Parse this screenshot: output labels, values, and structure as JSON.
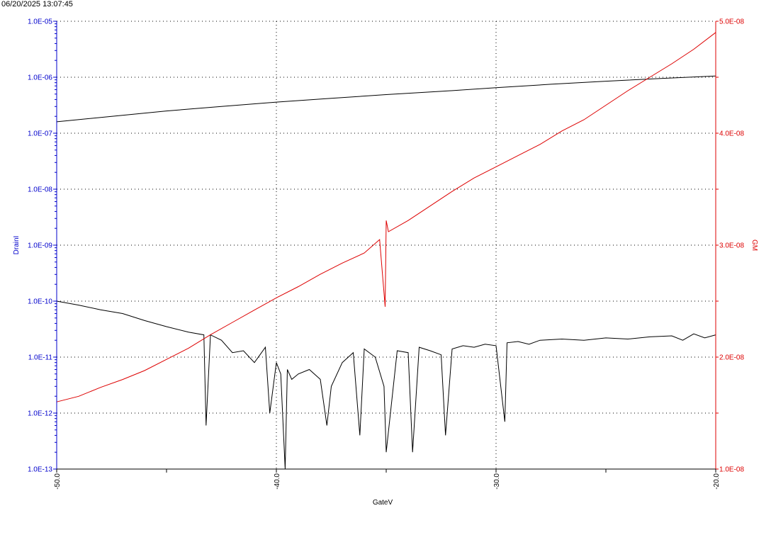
{
  "timestamp": "06/20/2025 13:07:45",
  "chart_data": {
    "type": "line",
    "xlabel": "GateV",
    "ylabel_left": "DrainI",
    "ylabel_right": "GM",
    "xlim": [
      -50.0,
      -20.0
    ],
    "ylim_left": [
      1e-13,
      1e-05
    ],
    "ylim_right": [
      1e-08,
      5e-08
    ],
    "left_scale": "log",
    "right_scale": "linear",
    "grid": true,
    "x_ticks": [
      "-50.0",
      "-40.0",
      "-30.0",
      "-20.0"
    ],
    "y_ticks_left": [
      "1.0E-13",
      "1.0E-12",
      "1.0E-11",
      "1.0E-10",
      "1.0E-09",
      "1.0E-08",
      "1.0E-07",
      "1.0E-06",
      "1.0E-05"
    ],
    "y_ticks_right": [
      "1.0E-08",
      "2.0E-08",
      "3.0E-08",
      "4.0E-08",
      "5.0E-08"
    ],
    "colors": {
      "left_axis": "#0000cc",
      "right_axis": "#dd0000",
      "drain_current": "#000000",
      "gate_leakage": "#000000",
      "gm": "#dd0000"
    },
    "series": [
      {
        "axis": "left",
        "color": "#000000",
        "x": [
          -50,
          -47.5,
          -45,
          -42.5,
          -40,
          -37.5,
          -35,
          -32.5,
          -30,
          -27.5,
          -25,
          -22.5,
          -20
        ],
        "y": [
          1.6e-07,
          2e-07,
          2.5e-07,
          3e-07,
          3.6e-07,
          4.2e-07,
          4.9e-07,
          5.6e-07,
          6.5e-07,
          7.5e-07,
          8.5e-07,
          9.5e-07,
          1.05e-06
        ]
      },
      {
        "axis": "left",
        "color": "#000000",
        "x": [
          -50,
          -49,
          -48,
          -47,
          -46,
          -45,
          -44,
          -43.3,
          -43.2,
          -43.0,
          -42.5,
          -42,
          -41.5,
          -41,
          -40.5,
          -40.3,
          -40,
          -39.8,
          -39.6,
          -39.5,
          -39.3,
          -39,
          -38.5,
          -38,
          -37.7,
          -37.5,
          -37,
          -36.5,
          -36.2,
          -36,
          -35.5,
          -35.1,
          -35,
          -34.5,
          -34,
          -33.8,
          -33.5,
          -33,
          -32.5,
          -32.3,
          -32,
          -31.5,
          -31,
          -30.5,
          -30,
          -29.6,
          -29.5,
          -29,
          -28.5,
          -28,
          -27,
          -26,
          -25,
          -24,
          -23,
          -22,
          -21.5,
          -21,
          -20.5,
          -20
        ],
        "y": [
          1e-10,
          8.5e-11,
          7e-11,
          6e-11,
          4.5e-11,
          3.5e-11,
          2.8e-11,
          2.5e-11,
          6e-13,
          2.5e-11,
          2e-11,
          1.2e-11,
          1.3e-11,
          8e-12,
          1.5e-11,
          1e-12,
          8e-12,
          5e-12,
          1e-13,
          6e-12,
          4e-12,
          5e-12,
          6e-12,
          4e-12,
          6e-13,
          3e-12,
          8e-12,
          1.2e-11,
          4e-13,
          1.4e-11,
          1e-11,
          3e-12,
          2e-13,
          1.3e-11,
          1.2e-11,
          2e-13,
          1.5e-11,
          1.3e-11,
          1.1e-11,
          4e-13,
          1.4e-11,
          1.6e-11,
          1.5e-11,
          1.7e-11,
          1.6e-11,
          7e-13,
          1.8e-11,
          1.9e-11,
          1.7e-11,
          2e-11,
          2.1e-11,
          2e-11,
          2.2e-11,
          2.1e-11,
          2.3e-11,
          2.4e-11,
          2e-11,
          2.6e-11,
          2.2e-11,
          2.5e-11
        ]
      },
      {
        "axis": "right",
        "color": "#dd0000",
        "x": [
          -50,
          -49,
          -48,
          -47,
          -46,
          -45,
          -44,
          -43,
          -42,
          -41,
          -40,
          -39,
          -38,
          -37,
          -36,
          -35.3,
          -35.05,
          -35.0,
          -34.9,
          -34,
          -33,
          -32,
          -31,
          -30,
          -29,
          -28,
          -27,
          -26,
          -25,
          -24,
          -23,
          -22,
          -21,
          -20
        ],
        "y": [
          1.6e-08,
          1.65e-08,
          1.73e-08,
          1.8e-08,
          1.88e-08,
          1.98e-08,
          2.08e-08,
          2.2e-08,
          2.31e-08,
          2.42e-08,
          2.53e-08,
          2.63e-08,
          2.74e-08,
          2.84e-08,
          2.93e-08,
          3.05e-08,
          2.45e-08,
          3.22e-08,
          3.12e-08,
          3.22e-08,
          3.35e-08,
          3.48e-08,
          3.6e-08,
          3.7e-08,
          3.8e-08,
          3.9e-08,
          4.02e-08,
          4.12e-08,
          4.25e-08,
          4.38e-08,
          4.5e-08,
          4.62e-08,
          4.75e-08,
          4.9e-08
        ]
      }
    ]
  }
}
